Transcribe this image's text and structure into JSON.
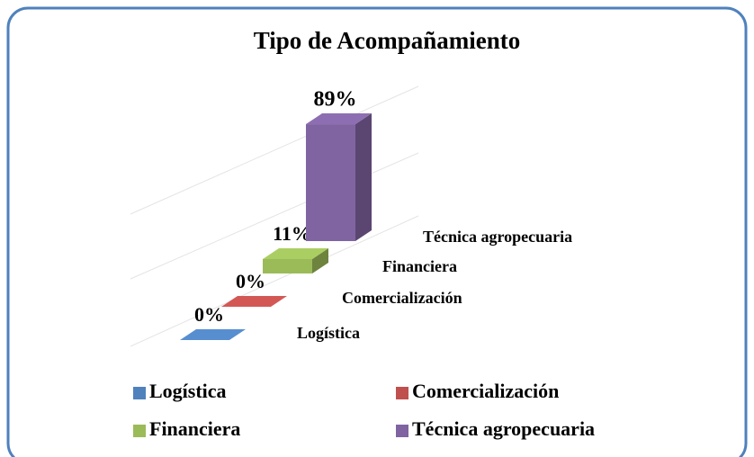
{
  "chart_data": {
    "type": "bar3d",
    "title": "Tipo de Acompañamiento",
    "categories": [
      "Logística",
      "Comercialización",
      "Financiera",
      "Técnica agropecuaria"
    ],
    "values": [
      0,
      0,
      11,
      89
    ],
    "value_labels": [
      "0%",
      "0%",
      "11%",
      "89%"
    ],
    "colors": [
      "#4f81bd",
      "#c0504d",
      "#9bbb59",
      "#8064a2"
    ]
  }
}
